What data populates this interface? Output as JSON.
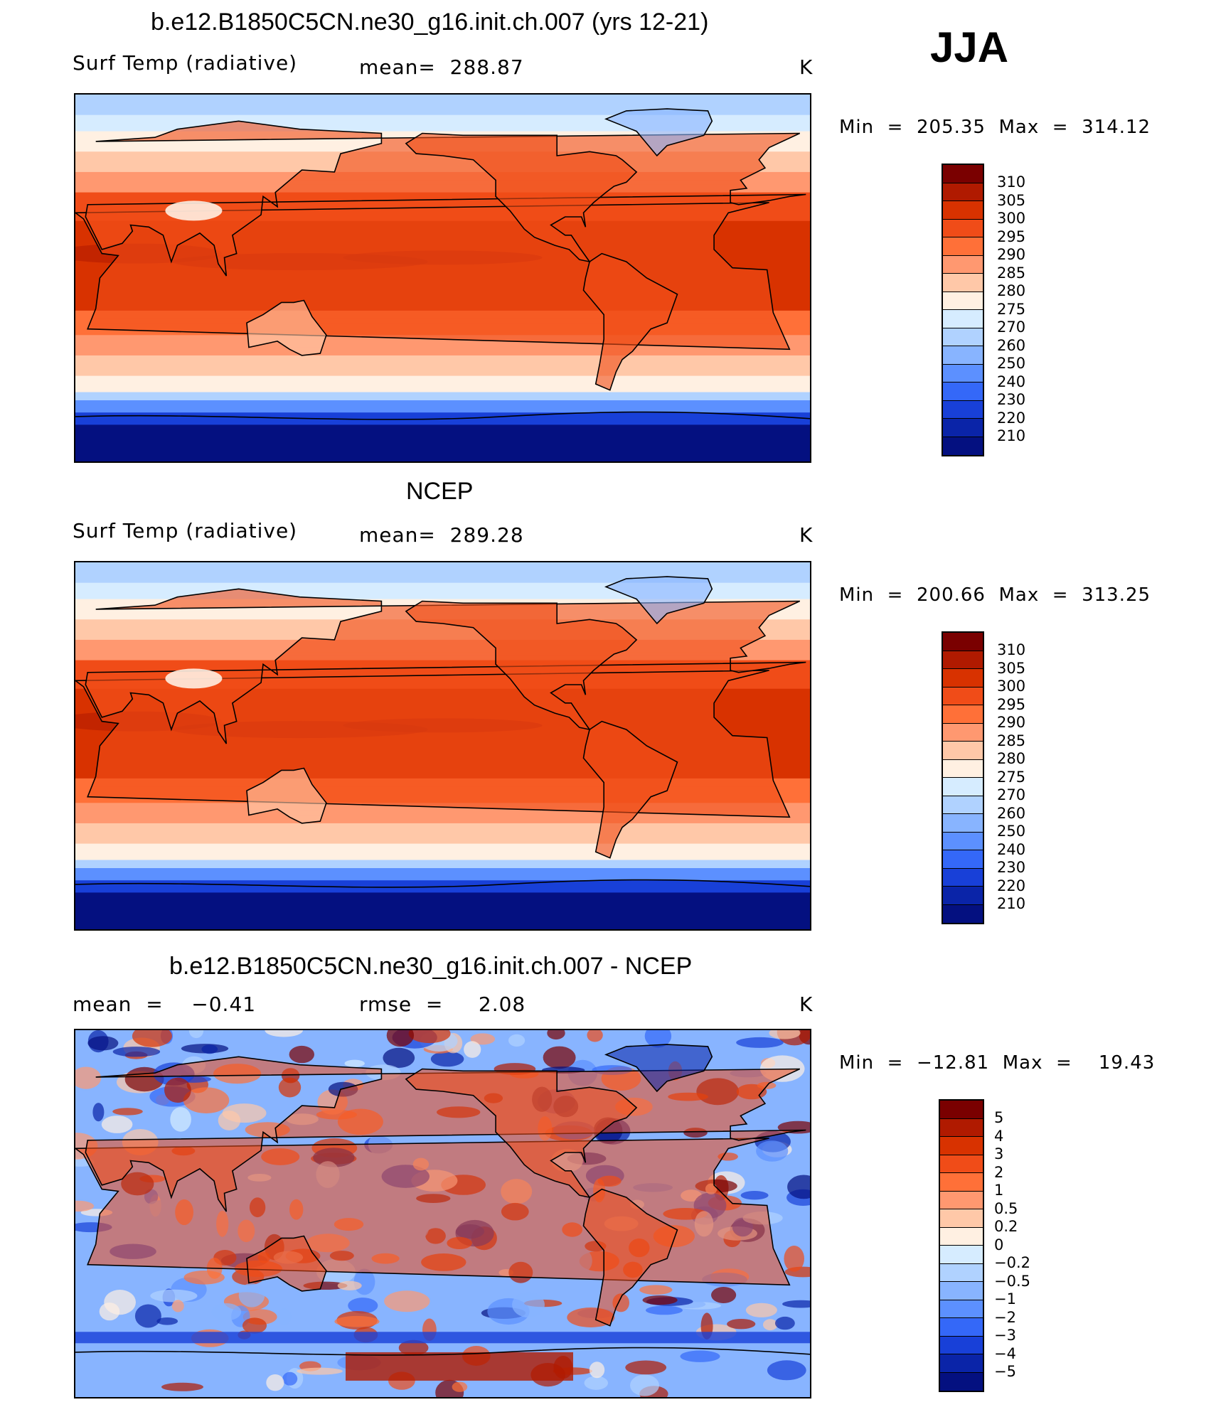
{
  "season": "JJA",
  "panels": [
    {
      "title": "b.e12.B1850C5CN.ne30_g16.init.ch.007 (yrs 12-21)",
      "left_label": "Surf Temp (radiative)",
      "center_label": "mean=  288.87",
      "units": "K",
      "min_max": "Min  =  205.35  Max  =  314.12",
      "kind": "model"
    },
    {
      "title": "NCEP",
      "left_label": "Surf Temp (radiative)",
      "center_label": "mean=  289.28",
      "units": "K",
      "min_max": "Min  =  200.66  Max  =  313.25",
      "kind": "obs"
    },
    {
      "title": "b.e12.B1850C5CN.ne30_g16.init.ch.007 - NCEP",
      "left_label": "mean  =    −0.41",
      "center_label": "rmse  =     2.08",
      "units": "K",
      "min_max": "Min  =  −12.81  Max  =    19.43",
      "kind": "diff"
    }
  ],
  "colorbars": {
    "temperature": {
      "labels": [
        "310",
        "305",
        "300",
        "295",
        "290",
        "285",
        "280",
        "275",
        "270",
        "260",
        "250",
        "240",
        "230",
        "220",
        "210"
      ],
      "colors": [
        "#7a0000",
        "#b01a00",
        "#d83200",
        "#f04c18",
        "#ff7038",
        "#ff9870",
        "#ffc8a8",
        "#fff0e2",
        "#d6ecff",
        "#b0d2ff",
        "#88b4ff",
        "#5c90ff",
        "#3468f8",
        "#1840d8",
        "#0a24a8",
        "#041080"
      ]
    },
    "difference": {
      "labels": [
        "5",
        "4",
        "3",
        "2",
        "1",
        "0.5",
        "0.2",
        "0",
        "−0.2",
        "−0.5",
        "−1",
        "−2",
        "−3",
        "−4",
        "−5"
      ],
      "colors": [
        "#7a0000",
        "#b01a00",
        "#d83200",
        "#f04c18",
        "#ff7038",
        "#ff9870",
        "#ffc8a8",
        "#fff0e2",
        "#d6ecff",
        "#b0d2ff",
        "#88b4ff",
        "#5c90ff",
        "#3468f8",
        "#1840d8",
        "#0a24a8",
        "#041080"
      ]
    }
  }
}
